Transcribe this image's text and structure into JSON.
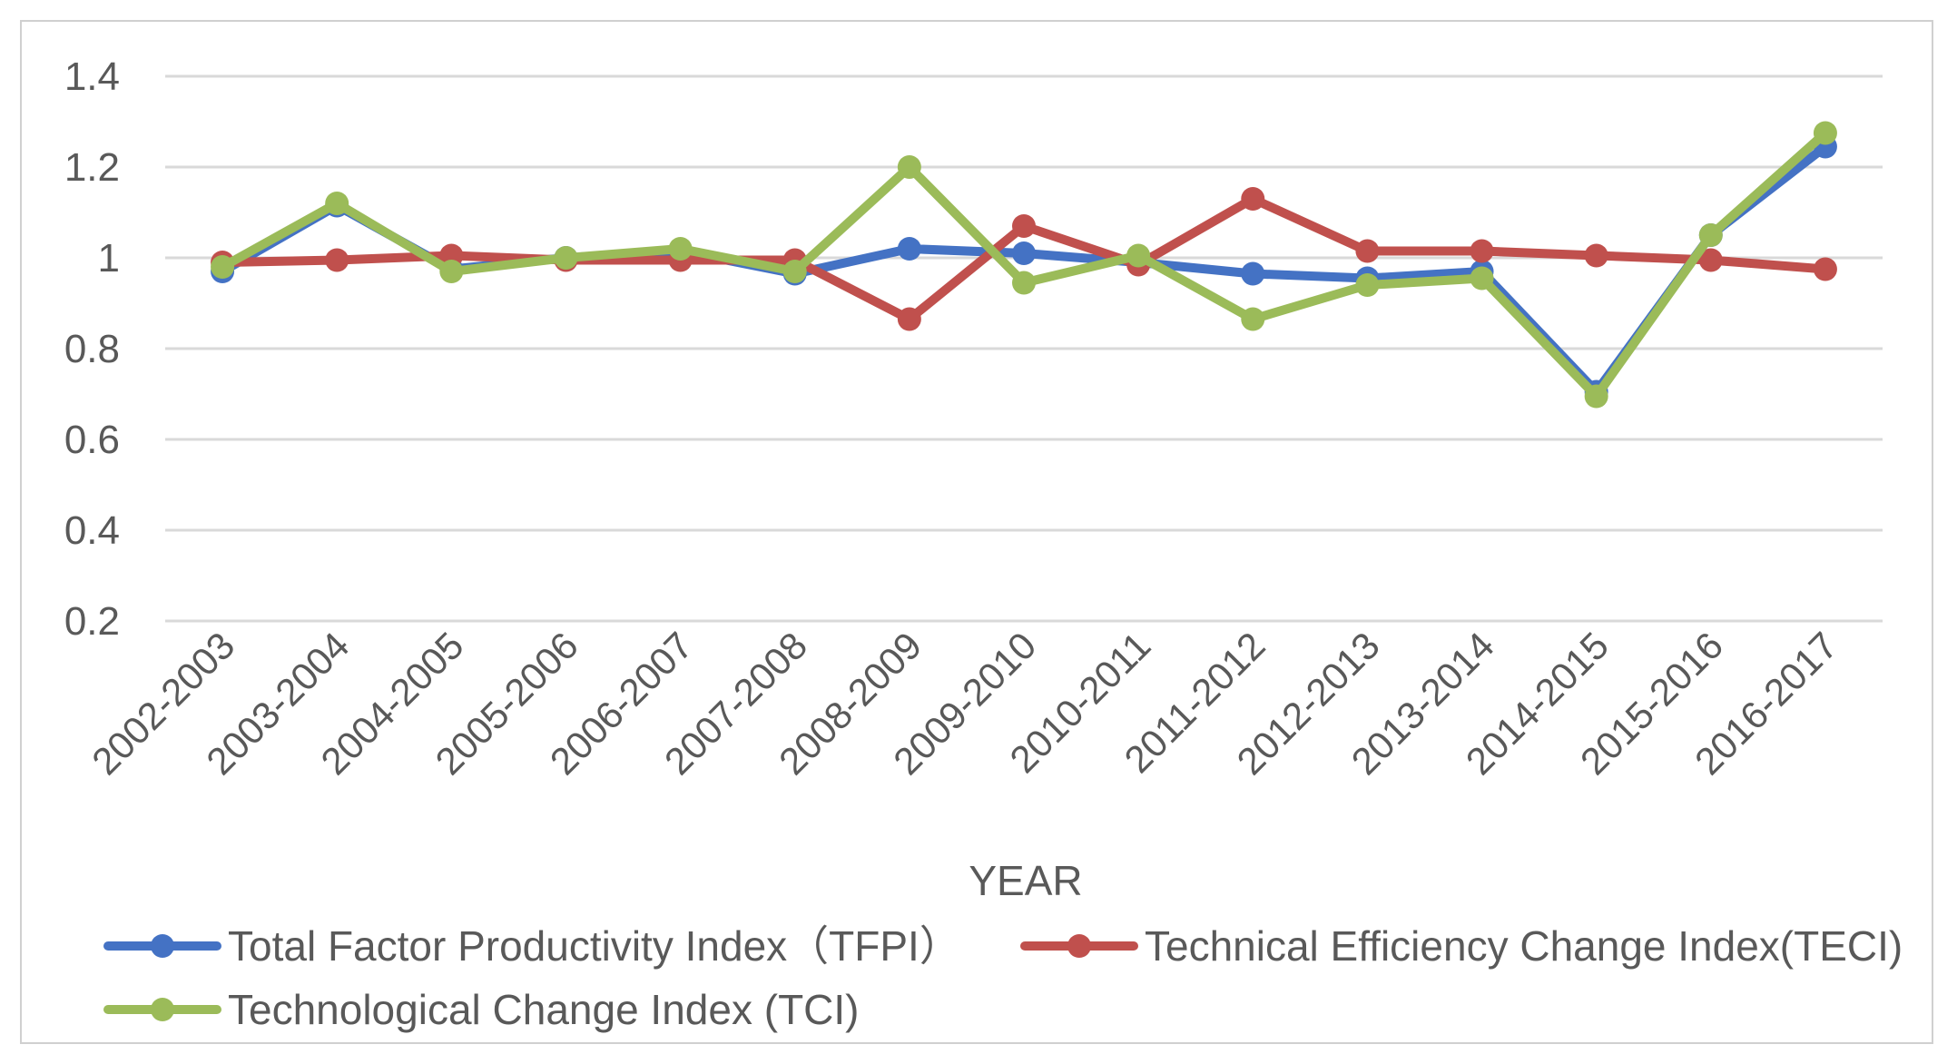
{
  "chart_data": {
    "type": "line",
    "title": "",
    "xlabel": "YEAR",
    "ylabel": "",
    "ylim": [
      0.2,
      1.4
    ],
    "yticks": [
      "0.2",
      "0.4",
      "0.6",
      "0.8",
      "1",
      "1.2",
      "1.4"
    ],
    "grid": true,
    "legend_position": "bottom",
    "categories": [
      "2002-2003",
      "2003-2004",
      "2004-2005",
      "2005-2006",
      "2006-2007",
      "2007-2008",
      "2008-2009",
      "2009-2010",
      "2010-2011",
      "2011-2012",
      "2012-2013",
      "2013-2014",
      "2014-2015",
      "2015-2016",
      "2016-2017"
    ],
    "series": [
      {
        "name": "Total Factor Productivity Index（TFPI）",
        "color": "#4472c4",
        "values": [
          0.97,
          1.115,
          0.975,
          1.0,
          1.015,
          0.965,
          1.02,
          1.01,
          0.99,
          0.965,
          0.955,
          0.97,
          0.705,
          1.05,
          1.245
        ]
      },
      {
        "name": "Technical Efficiency Change Index(TECI)",
        "color": "#c0504d",
        "values": [
          0.99,
          0.995,
          1.005,
          0.995,
          0.995,
          0.995,
          0.865,
          1.07,
          0.985,
          1.13,
          1.015,
          1.015,
          1.005,
          0.995,
          0.975
        ]
      },
      {
        "name": "Technological Change Index (TCI)",
        "color": "#9bbb59",
        "values": [
          0.98,
          1.12,
          0.97,
          1.0,
          1.02,
          0.97,
          1.2,
          0.945,
          1.005,
          0.865,
          0.94,
          0.955,
          0.695,
          1.05,
          1.275
        ]
      }
    ]
  }
}
